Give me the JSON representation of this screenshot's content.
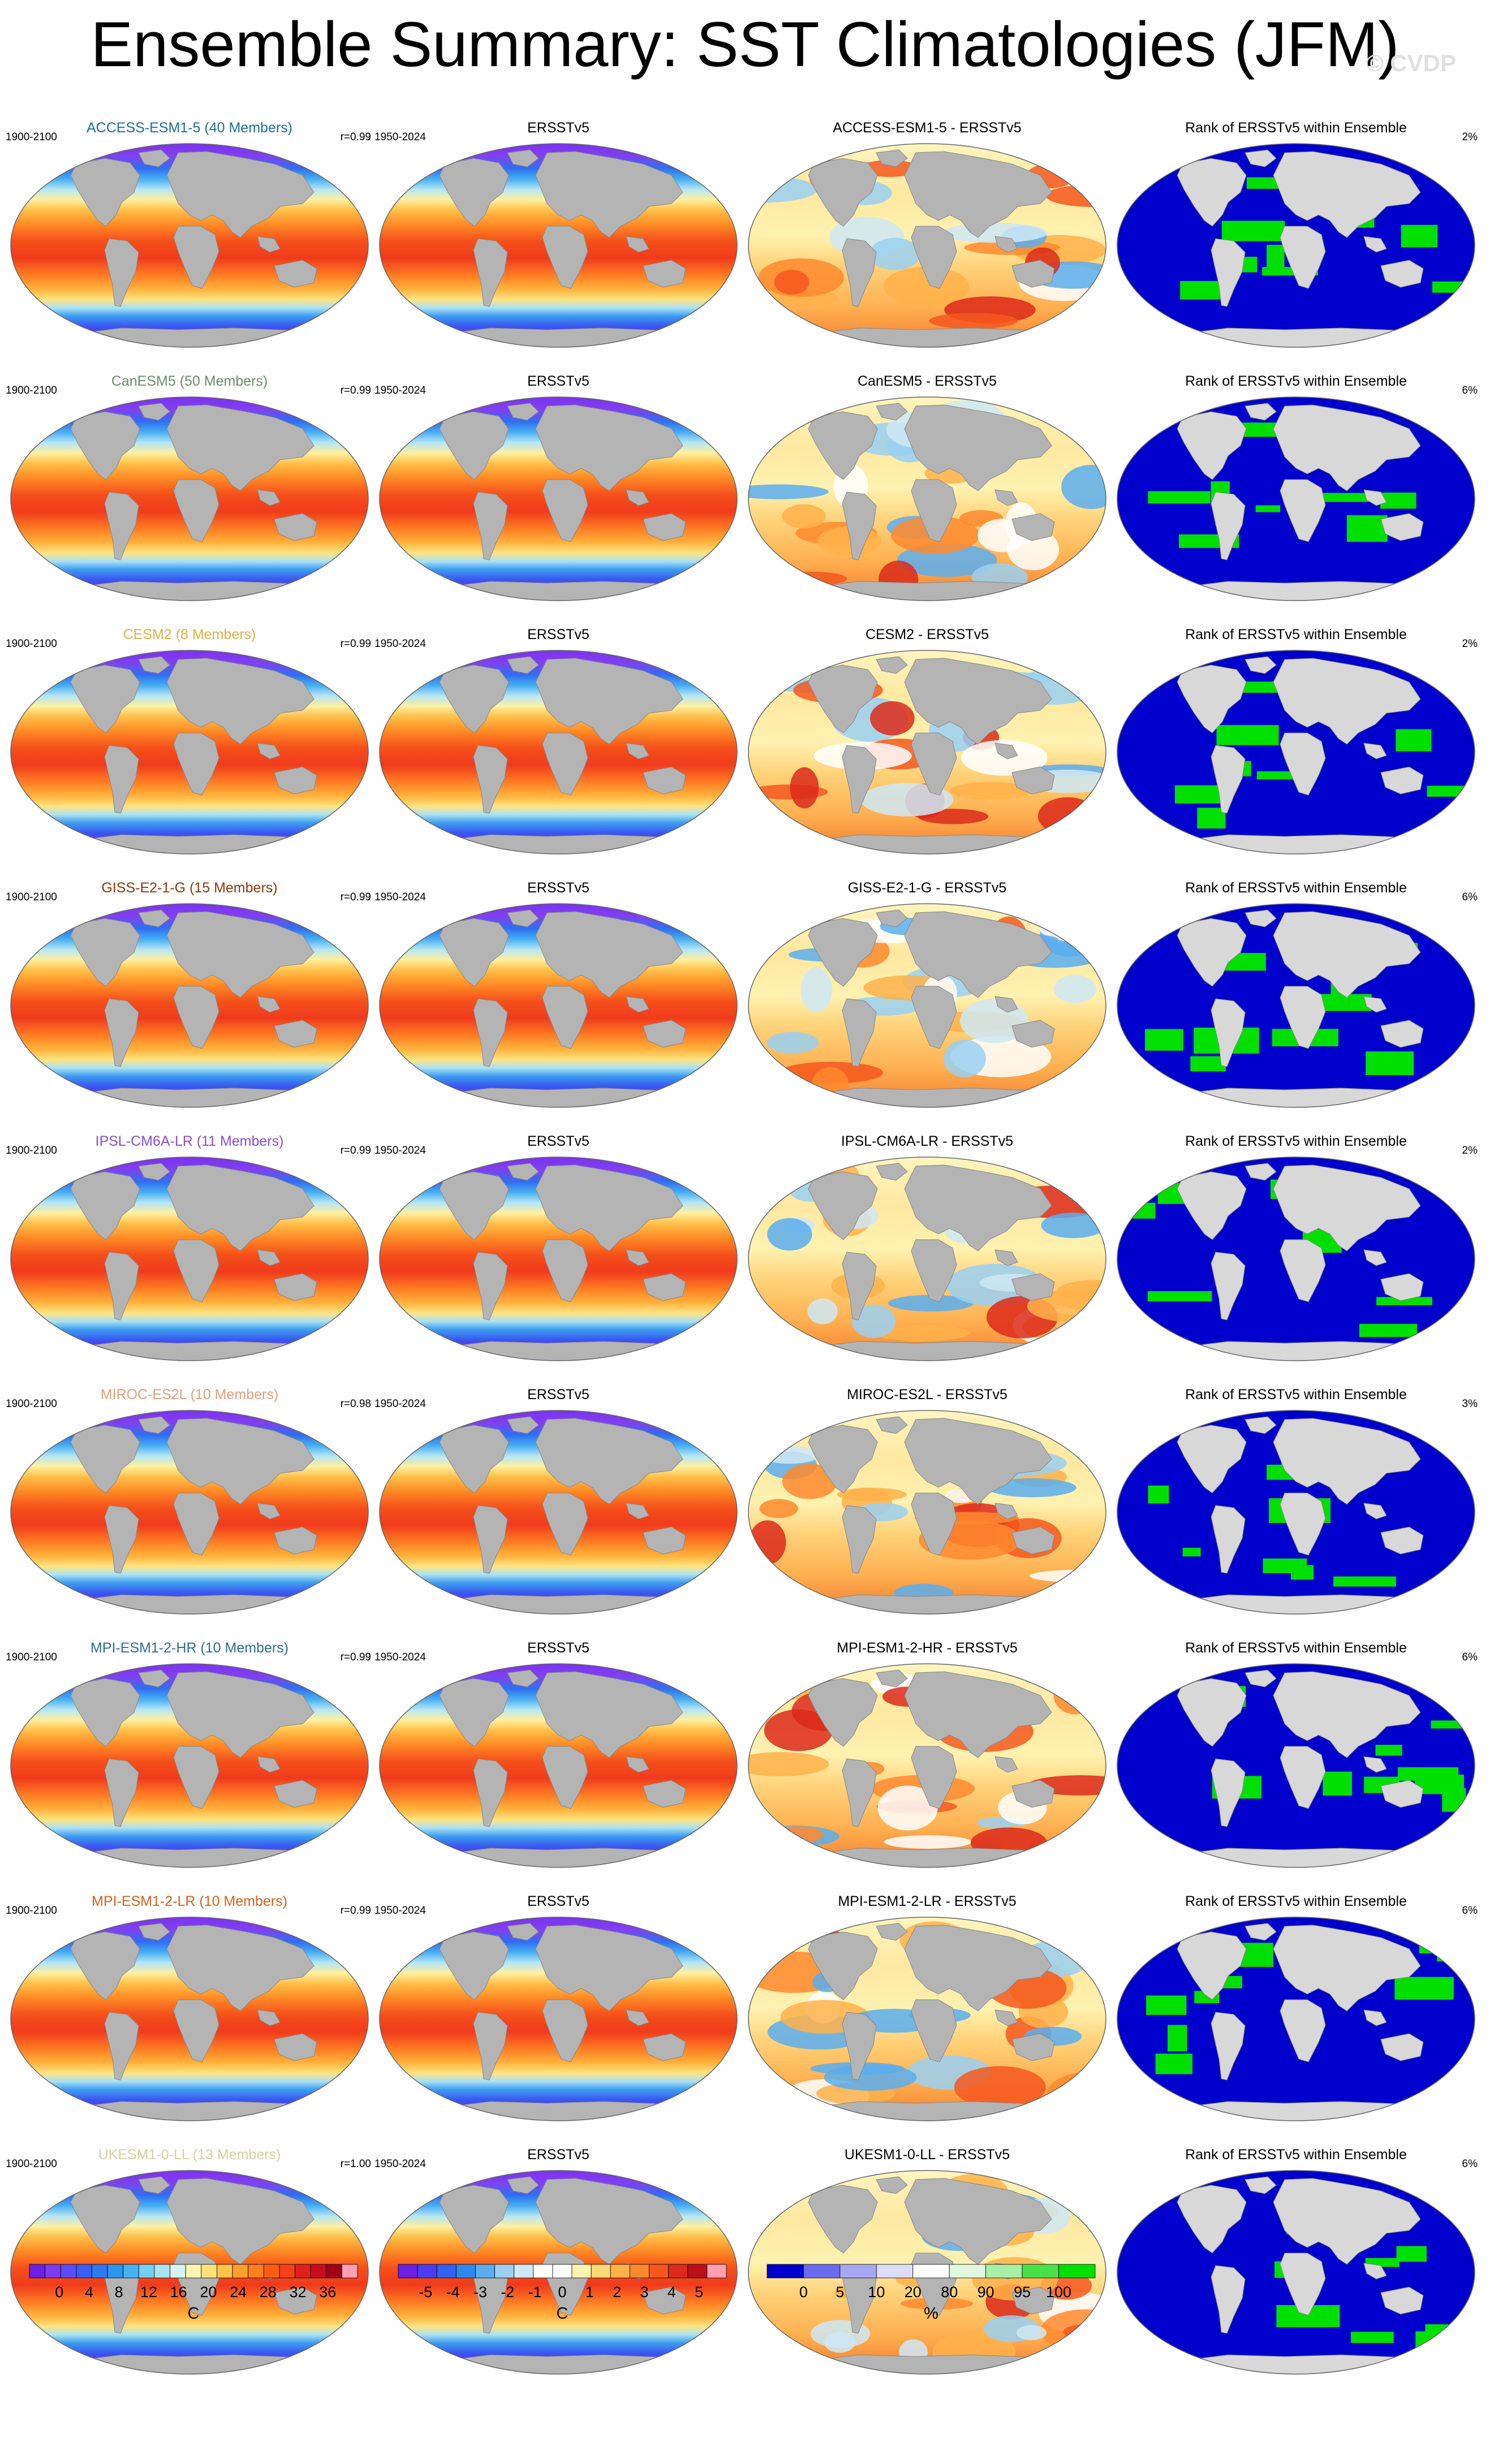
{
  "title": "Ensemble Summary: SST Climatologies (JFM)",
  "watermark": "© CVDP",
  "rows": [
    {
      "model": "ACCESS-ESM1-5",
      "members": "ACCESS-ESM1-5 (40 Members)",
      "color": "#1f6f9a",
      "period": "1900-2100",
      "r": "r=0.99",
      "obs": "ERSSTv5",
      "obs_period": "1950-2024",
      "diff": "ACCESS-ESM1-5 - ERSSTv5",
      "rank_title": "Rank of ERSSTv5 within Ensemble",
      "rank_pct": "2%"
    },
    {
      "model": "CanESM5",
      "members": "CanESM5 (50 Members)",
      "color": "#6b8e6b",
      "period": "1900-2100",
      "r": "r=0.99",
      "obs": "ERSSTv5",
      "obs_period": "1950-2024",
      "diff": "CanESM5 - ERSSTv5",
      "rank_title": "Rank of ERSSTv5 within Ensemble",
      "rank_pct": "6%"
    },
    {
      "model": "CESM2",
      "members": "CESM2 (8 Members)",
      "color": "#e0b04a",
      "period": "1900-2100",
      "r": "r=0.99",
      "obs": "ERSSTv5",
      "obs_period": "1950-2024",
      "diff": "CESM2 - ERSSTv5",
      "rank_title": "Rank of ERSSTv5 within Ensemble",
      "rank_pct": "2%"
    },
    {
      "model": "GISS-E2-1-G",
      "members": "GISS-E2-1-G (15 Members)",
      "color": "#8b3a10",
      "period": "1900-2100",
      "r": "r=0.99",
      "obs": "ERSSTv5",
      "obs_period": "1950-2024",
      "diff": "GISS-E2-1-G - ERSSTv5",
      "rank_title": "Rank of ERSSTv5 within Ensemble",
      "rank_pct": "6%"
    },
    {
      "model": "IPSL-CM6A-LR",
      "members": "IPSL-CM6A-LR (11 Members)",
      "color": "#8a4fd0",
      "period": "1900-2100",
      "r": "r=0.99",
      "obs": "ERSSTv5",
      "obs_period": "1950-2024",
      "diff": "IPSL-CM6A-LR - ERSSTv5",
      "rank_title": "Rank of ERSSTv5 within Ensemble",
      "rank_pct": "2%"
    },
    {
      "model": "MIROC-ES2L",
      "members": "MIROC-ES2L (10 Members)",
      "color": "#e0a078",
      "period": "1900-2100",
      "r": "r=0.98",
      "obs": "ERSSTv5",
      "obs_period": "1950-2024",
      "diff": "MIROC-ES2L - ERSSTv5",
      "rank_title": "Rank of ERSSTv5 within Ensemble",
      "rank_pct": "3%"
    },
    {
      "model": "MPI-ESM1-2-HR",
      "members": "MPI-ESM1-2-HR (10 Members)",
      "color": "#2f6f8f",
      "period": "1900-2100",
      "r": "r=0.99",
      "obs": "ERSSTv5",
      "obs_period": "1950-2024",
      "diff": "MPI-ESM1-2-HR - ERSSTv5",
      "rank_title": "Rank of ERSSTv5 within Ensemble",
      "rank_pct": "6%"
    },
    {
      "model": "MPI-ESM1-2-LR",
      "members": "MPI-ESM1-2-LR (10 Members)",
      "color": "#d0641e",
      "period": "1900-2100",
      "r": "r=0.99",
      "obs": "ERSSTv5",
      "obs_period": "1950-2024",
      "diff": "MPI-ESM1-2-LR - ERSSTv5",
      "rank_title": "Rank of ERSSTv5 within Ensemble",
      "rank_pct": "6%"
    },
    {
      "model": "UKESM1-0-LL",
      "members": "UKESM1-0-LL (13 Members)",
      "color": "#d8d0a0",
      "period": "1900-2100",
      "r": "r=1.00",
      "obs": "ERSSTv5",
      "obs_period": "1950-2024",
      "diff": "UKESM1-0-LL - ERSSTv5",
      "rank_title": "Rank of ERSSTv5 within Ensemble",
      "rank_pct": "6%"
    }
  ],
  "colorbars": [
    {
      "name": "sst",
      "unit": "C",
      "ticks": [
        "0",
        "4",
        "8",
        "12",
        "16",
        "20",
        "24",
        "28",
        "32",
        "36"
      ],
      "colors": [
        "#6a1fe6",
        "#7b3cf0",
        "#5a4df5",
        "#3a5cf7",
        "#2c7af2",
        "#2a96f0",
        "#46b2f2",
        "#76cef5",
        "#a9e4f5",
        "#d9f4f5",
        "#fff6b0",
        "#ffe27a",
        "#ffc24a",
        "#ffa030",
        "#ff7f1e",
        "#ff5e12",
        "#f5401a",
        "#e0201c",
        "#c80c20",
        "#a00018",
        "#ff9fb0"
      ]
    },
    {
      "name": "diff",
      "unit": "C",
      "ticks": [
        "-5",
        "-4",
        "-3",
        "-2",
        "-1",
        "0",
        "1",
        "2",
        "3",
        "4",
        "5"
      ],
      "colors": [
        "#6a1fe6",
        "#4a3df0",
        "#3260f2",
        "#2e88ee",
        "#5aaeee",
        "#9ad0f2",
        "#cfe8f5",
        "#ffffff",
        "#ffffff",
        "#fff3b0",
        "#ffd878",
        "#ffb24a",
        "#ff8a2e",
        "#f5581e",
        "#dc2a1a",
        "#b8101a",
        "#ff9fb0"
      ]
    },
    {
      "name": "rank",
      "unit": "%",
      "ticks": [
        "0",
        "5",
        "10",
        "20",
        "80",
        "90",
        "95",
        "100"
      ],
      "colors": [
        "#0000cc",
        "#6a6aee",
        "#a8a8f2",
        "#dcdcf8",
        "#ffffff",
        "#e0f8e0",
        "#a8f0a8",
        "#4ae04a",
        "#00e000"
      ]
    }
  ],
  "icons": {
    "land": "land-mask",
    "ocean": "ocean-field"
  }
}
